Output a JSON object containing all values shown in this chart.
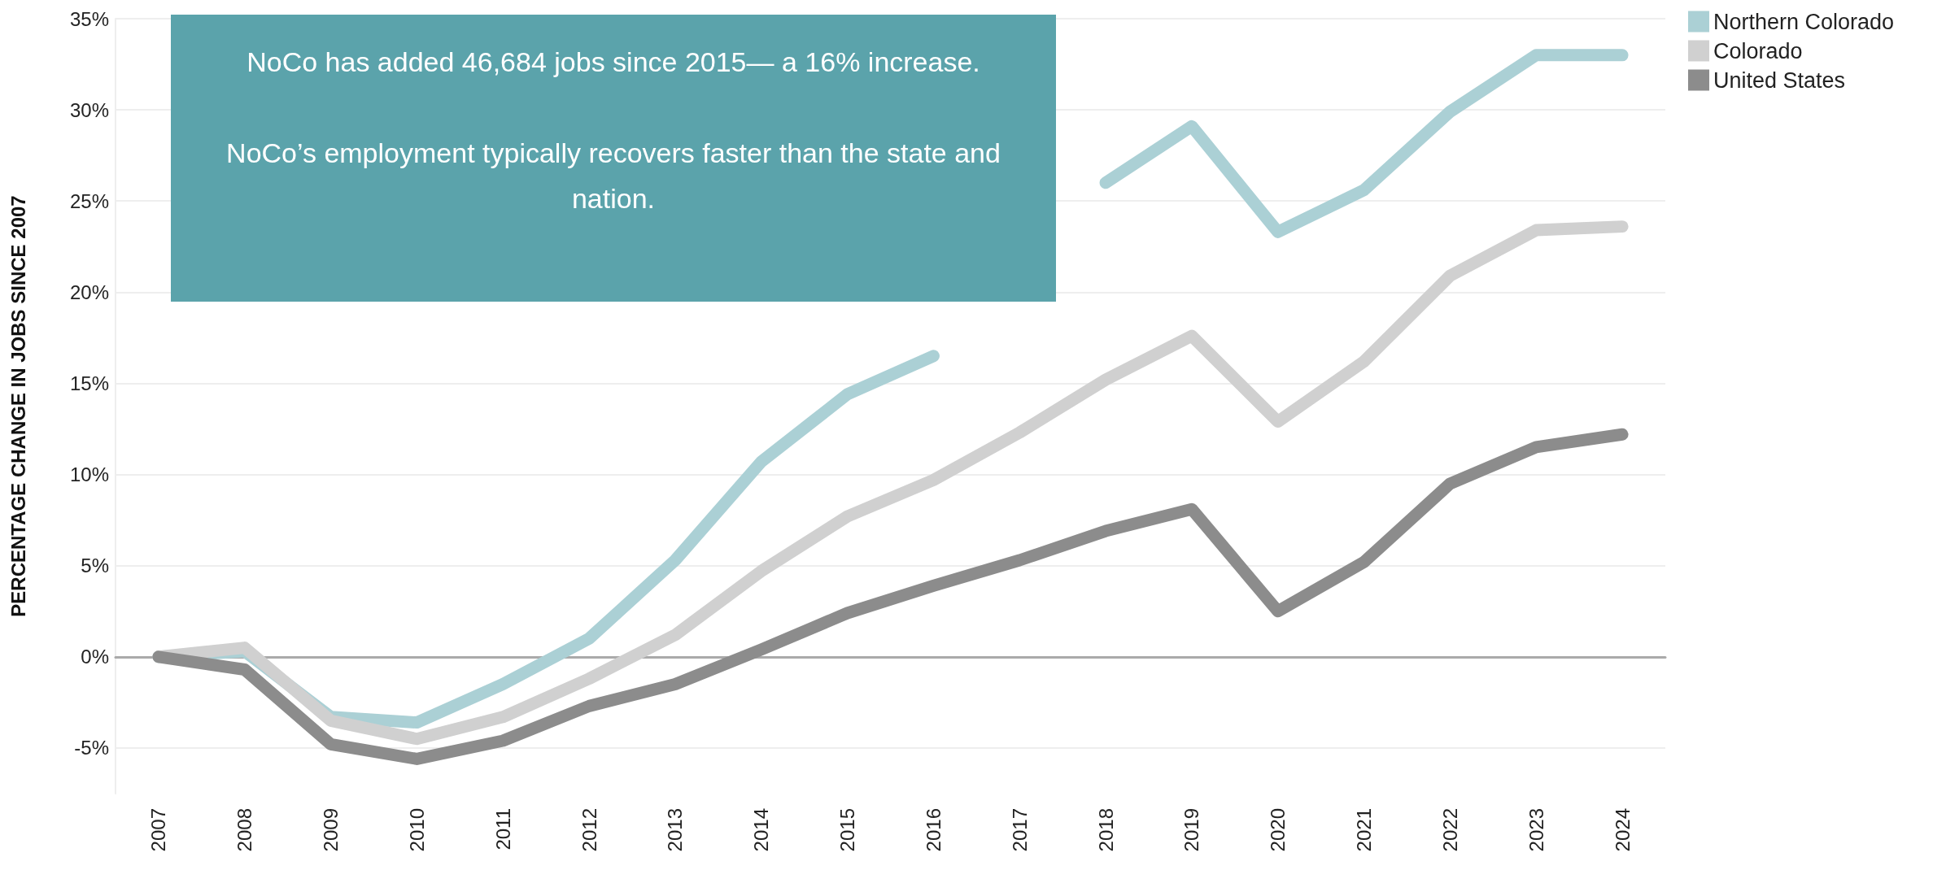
{
  "chart_data": {
    "type": "line",
    "ylabel": "PERCENTAGE CHANGE IN JOBS SINCE 2007",
    "categories": [
      "2007",
      "2008",
      "2009",
      "2010",
      "2011",
      "2012",
      "2013",
      "2014",
      "2015",
      "2016",
      "2017",
      "2018",
      "2019",
      "2020",
      "2021",
      "2022",
      "2023",
      "2024"
    ],
    "series": [
      {
        "name": "Northern Colorado",
        "color": "#abd0d5",
        "values": [
          0,
          0.3,
          -3.3,
          -3.6,
          -1.5,
          1.0,
          5.3,
          10.7,
          14.4,
          16.5,
          null,
          26.0,
          29.1,
          23.3,
          25.6,
          29.9,
          33.0,
          33.0
        ]
      },
      {
        "name": "Colorado",
        "color": "#d0d0d0",
        "values": [
          0,
          0.5,
          -3.5,
          -4.5,
          -3.3,
          -1.2,
          1.2,
          4.7,
          7.7,
          9.7,
          12.3,
          15.2,
          17.6,
          12.9,
          16.2,
          20.9,
          23.4,
          23.6
        ]
      },
      {
        "name": "United States",
        "color": "#8c8c8c",
        "values": [
          0,
          -0.7,
          -4.8,
          -5.6,
          -4.6,
          -2.7,
          -1.5,
          0.4,
          2.4,
          3.9,
          5.3,
          6.9,
          8.1,
          2.5,
          5.2,
          9.5,
          11.5,
          12.2
        ]
      }
    ],
    "ylim": [
      -7.5,
      35
    ],
    "yticks": [
      {
        "value": -5,
        "label": "-5%"
      },
      {
        "value": 0,
        "label": "0%"
      },
      {
        "value": 5,
        "label": "5%"
      },
      {
        "value": 10,
        "label": "10%"
      },
      {
        "value": 15,
        "label": "15%"
      },
      {
        "value": 20,
        "label": "20%"
      },
      {
        "value": 25,
        "label": "25%"
      },
      {
        "value": 30,
        "label": "30%"
      },
      {
        "value": 35,
        "label": "35%"
      }
    ],
    "grid": "y",
    "legend": "top right",
    "marker": "none",
    "line_style": "solid",
    "annotations": [
      "NoCo has added 46,684 jobs since 2015— a 16% increase.",
      "NoCo’s employment typically recovers faster than the state and nation."
    ]
  }
}
